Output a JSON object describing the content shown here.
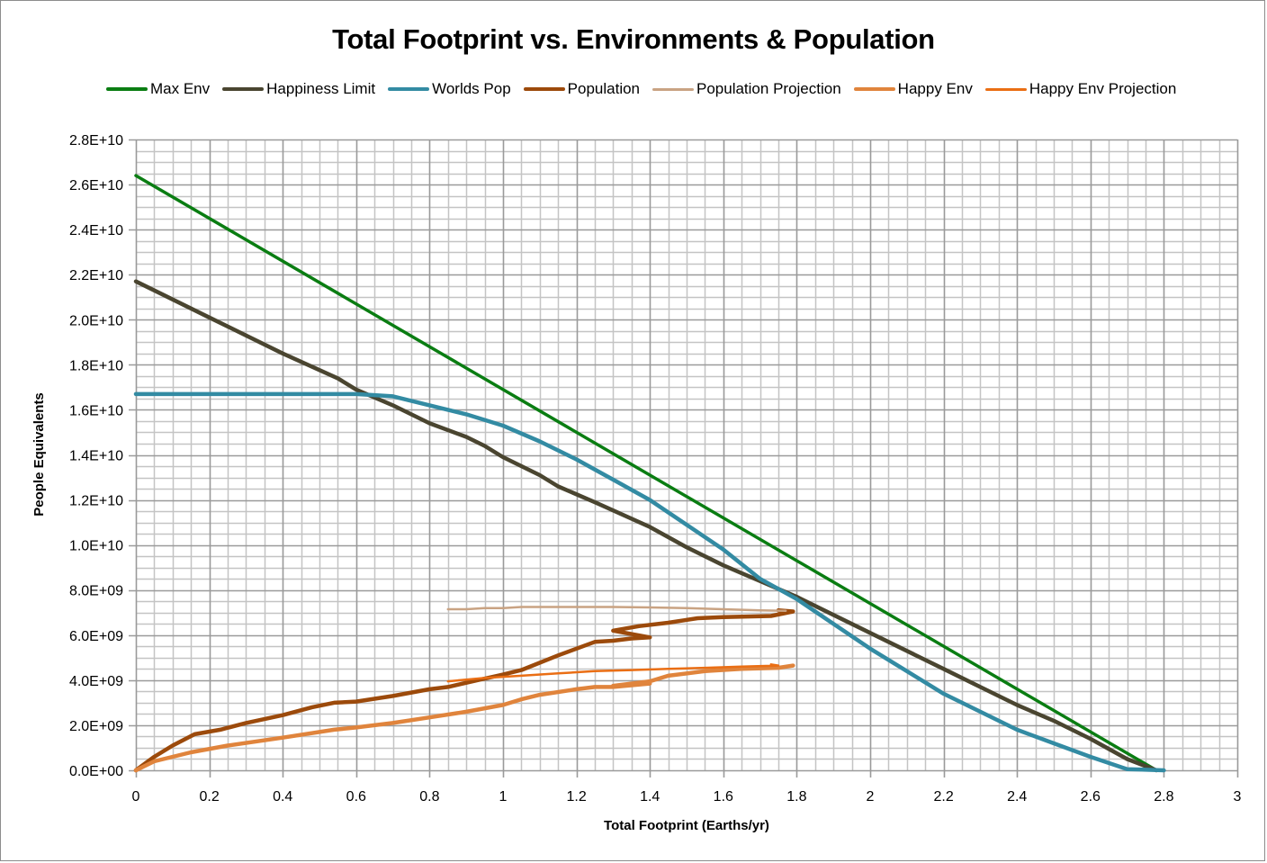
{
  "chart_data": {
    "type": "line",
    "title": "Total Footprint vs. Environments & Population",
    "xlabel": "Total Footprint (Earths/yr)",
    "ylabel": "People Equivalents",
    "xlim": [
      0,
      3
    ],
    "ylim": [
      0,
      28000000000
    ],
    "x_ticks": [
      0,
      0.2,
      0.4,
      0.6,
      0.8,
      1,
      1.2,
      1.4,
      1.6,
      1.8,
      2,
      2.2,
      2.4,
      2.6,
      2.8,
      3
    ],
    "x_tick_labels": [
      "0",
      "0.2",
      "0.4",
      "0.6",
      "0.8",
      "1",
      "1.2",
      "1.4",
      "1.6",
      "1.8",
      "2",
      "2.2",
      "2.4",
      "2.6",
      "2.8",
      "3"
    ],
    "y_ticks": [
      0,
      2000000000,
      4000000000,
      6000000000,
      8000000000,
      10000000000,
      12000000000,
      14000000000,
      16000000000,
      18000000000,
      20000000000,
      22000000000,
      24000000000,
      26000000000,
      28000000000
    ],
    "y_tick_labels": [
      "0.0E+00",
      "2.0E+09",
      "4.0E+09",
      "6.0E+09",
      "8.0E+09",
      "1.0E+10",
      "1.2E+10",
      "1.4E+10",
      "1.6E+10",
      "1.8E+10",
      "2.0E+10",
      "2.2E+10",
      "2.4E+10",
      "2.6E+10",
      "2.8E+10"
    ],
    "grid": "major and minor",
    "minor_x_step": 0.05,
    "minor_y_step": 500000000,
    "legend_position": "top",
    "series": [
      {
        "name": "Max Env",
        "color": "#0a7d12",
        "weight": "medium",
        "x": [
          0,
          2.78
        ],
        "y": [
          26400000000,
          0
        ]
      },
      {
        "name": "Happiness Limit",
        "color": "#4a4530",
        "weight": "thick",
        "x": [
          0,
          0.05,
          0.2,
          0.4,
          0.55,
          0.6,
          0.7,
          0.8,
          0.9,
          0.95,
          1.0,
          1.1,
          1.15,
          1.25,
          1.4,
          1.5,
          1.6,
          1.7,
          1.8,
          1.9,
          2.0,
          2.1,
          2.2,
          2.3,
          2.4,
          2.5,
          2.6,
          2.7,
          2.78
        ],
        "y": [
          21700000000,
          21300000000,
          20100000000,
          18500000000,
          17400000000,
          16900000000,
          16200000000,
          15400000000,
          14800000000,
          14400000000,
          13900000000,
          13100000000,
          12600000000,
          11900000000,
          10800000000,
          9900000000,
          9100000000,
          8400000000,
          7700000000,
          6900000000,
          6100000000,
          5300000000,
          4500000000,
          3700000000,
          2900000000,
          2200000000,
          1400000000,
          500000000,
          0
        ]
      },
      {
        "name": "Worlds Pop",
        "color": "#338ba3",
        "weight": "thick",
        "x": [
          0,
          0.3,
          0.6,
          0.7,
          0.75,
          0.8,
          0.9,
          1.0,
          1.1,
          1.2,
          1.3,
          1.4,
          1.5,
          1.6,
          1.7,
          1.8,
          1.9,
          2.0,
          2.1,
          2.2,
          2.3,
          2.4,
          2.5,
          2.6,
          2.7,
          2.8
        ],
        "y": [
          16700000000,
          16700000000,
          16700000000,
          16600000000,
          16400000000,
          16200000000,
          15800000000,
          15300000000,
          14600000000,
          13800000000,
          12900000000,
          12000000000,
          10900000000,
          9800000000,
          8500000000,
          7600000000,
          6500000000,
          5400000000,
          4400000000,
          3400000000,
          2600000000,
          1800000000,
          1200000000,
          600000000,
          50000000,
          0
        ]
      },
      {
        "name": "Population",
        "color": "#9c4a0b",
        "weight": "thick",
        "x": [
          0,
          0.05,
          0.1,
          0.16,
          0.23,
          0.3,
          0.4,
          0.48,
          0.54,
          0.6,
          0.7,
          0.8,
          0.85,
          0.93,
          1.0,
          1.05,
          1.15,
          1.25,
          1.3,
          1.35,
          1.4,
          1.3,
          1.37,
          1.45,
          1.53,
          1.6,
          1.73,
          1.79,
          1.75
        ],
        "y": [
          0,
          600000000,
          1100000000,
          1600000000,
          1800000000,
          2100000000,
          2450000000,
          2800000000,
          3000000000,
          3050000000,
          3300000000,
          3600000000,
          3700000000,
          4000000000,
          4250000000,
          4450000000,
          5100000000,
          5700000000,
          5750000000,
          5850000000,
          5900000000,
          6200000000,
          6400000000,
          6550000000,
          6750000000,
          6800000000,
          6850000000,
          7050000000,
          7100000000
        ]
      },
      {
        "name": "Population Projection",
        "color": "#c9a383",
        "weight": "thin",
        "x": [
          0.85,
          0.9,
          0.95,
          1.0,
          1.05,
          1.1,
          1.2,
          1.3,
          1.4,
          1.5,
          1.6,
          1.7,
          1.77
        ],
        "y": [
          7150000000,
          7150000000,
          7200000000,
          7200000000,
          7250000000,
          7250000000,
          7250000000,
          7250000000,
          7230000000,
          7200000000,
          7150000000,
          7100000000,
          7080000000
        ]
      },
      {
        "name": "Happy Env",
        "color": "#e0843c",
        "weight": "thick",
        "x": [
          0,
          0.05,
          0.15,
          0.25,
          0.4,
          0.54,
          0.6,
          0.7,
          0.8,
          0.9,
          1.0,
          1.05,
          1.1,
          1.2,
          1.25,
          1.3,
          1.4,
          1.3,
          1.4,
          1.45,
          1.55,
          1.65,
          1.75,
          1.79
        ],
        "y": [
          0,
          400000000,
          800000000,
          1100000000,
          1450000000,
          1800000000,
          1900000000,
          2100000000,
          2350000000,
          2600000000,
          2900000000,
          3150000000,
          3350000000,
          3600000000,
          3700000000,
          3700000000,
          3850000000,
          3750000000,
          3950000000,
          4200000000,
          4400000000,
          4500000000,
          4550000000,
          4650000000
        ]
      },
      {
        "name": "Happy Env Projection",
        "color": "#ea6e14",
        "weight": "thin",
        "x": [
          0.85,
          0.95,
          1.05,
          1.15,
          1.25,
          1.35,
          1.45,
          1.55,
          1.65,
          1.75,
          1.73
        ],
        "y": [
          3950000000,
          4100000000,
          4200000000,
          4300000000,
          4400000000,
          4450000000,
          4500000000,
          4550000000,
          4600000000,
          4650000000,
          4700000000
        ]
      }
    ]
  }
}
